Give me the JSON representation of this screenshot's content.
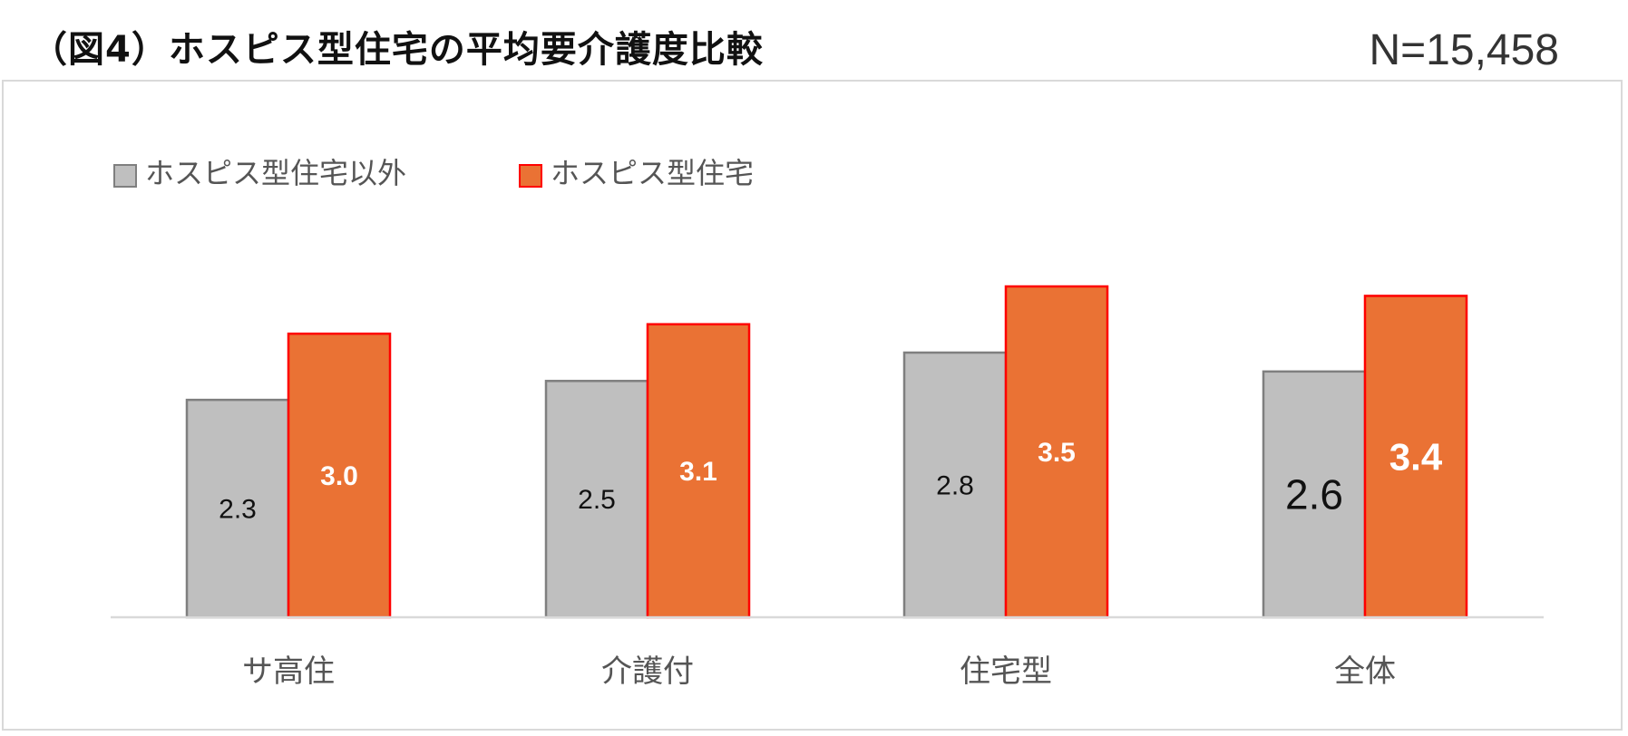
{
  "header": {
    "title": "（図4）ホスピス型住宅の平均要介護度比較",
    "n_label": "N=15,458"
  },
  "colors": {
    "series_gray_fill": "#bfbfbf",
    "series_gray_stroke": "#7f7f7f",
    "series_orange_fill": "#ea7234",
    "series_orange_stroke": "#ff0000",
    "axis": "#d9d9d9",
    "label_dark": "#111111",
    "label_light": "#ffffff",
    "category_text": "#555555"
  },
  "chart_data": {
    "type": "bar",
    "title": "（図4）ホスピス型住宅の平均要介護度比較",
    "categories": [
      "サ高住",
      "介護付",
      "住宅型",
      "全体"
    ],
    "series": [
      {
        "name": "ホスピス型住宅以外",
        "values": [
          2.3,
          2.5,
          2.8,
          2.6
        ],
        "labels": [
          "2.3",
          "2.5",
          "2.8",
          "2.6"
        ]
      },
      {
        "name": "ホスピス型住宅",
        "values": [
          3.0,
          3.1,
          3.5,
          3.4
        ],
        "labels": [
          "3.0",
          "3.1",
          "3.5",
          "3.4"
        ]
      }
    ],
    "ylim": [
      0,
      3.5
    ],
    "xlabel": "",
    "ylabel": "",
    "legend": "top-left",
    "grid": false
  }
}
